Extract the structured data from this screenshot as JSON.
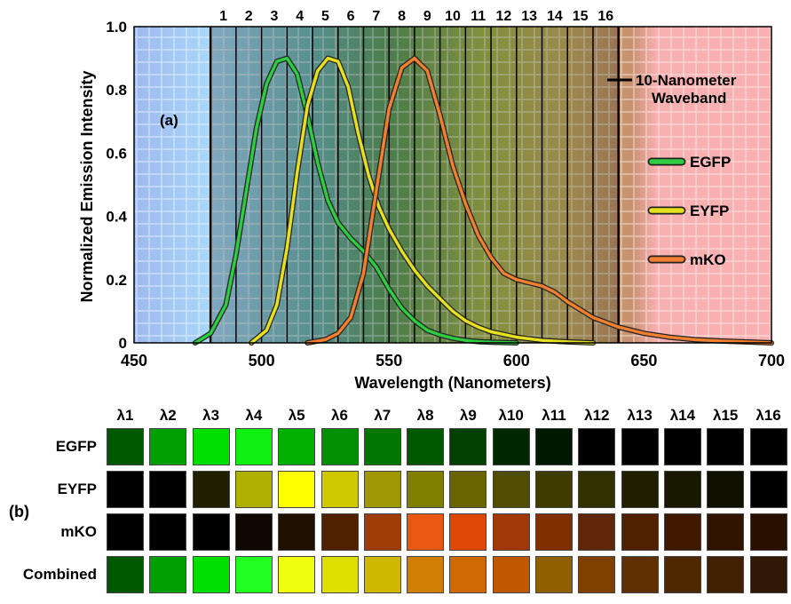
{
  "chart_data": [
    {
      "type": "line",
      "panel_label": "(a)",
      "xlabel": "Wavelength (Nanometers)",
      "ylabel": "Normalized Emission Intensity",
      "xlim": [
        450,
        700
      ],
      "ylim": [
        0,
        1.0
      ],
      "x_ticks": [
        "450",
        "500",
        "550",
        "600",
        "650",
        "700"
      ],
      "y_ticks": [
        "0",
        "0.2",
        "0.4",
        "0.6",
        "0.8",
        "1.0"
      ],
      "grid": true,
      "legend_position": "right",
      "waveband": {
        "start": 480,
        "width": 10,
        "count": 16,
        "labels": [
          "1",
          "2",
          "3",
          "4",
          "5",
          "6",
          "7",
          "8",
          "9",
          "10",
          "11",
          "12",
          "13",
          "14",
          "15",
          "16"
        ],
        "annotation_line1": "10-Nanometer",
        "annotation_line2": "Waveband"
      },
      "series": [
        {
          "name": "EGFP",
          "color": "#2ecc40",
          "x": [
            474,
            480,
            486,
            490,
            494,
            498,
            502,
            506,
            510,
            514,
            518,
            522,
            526,
            530,
            535,
            540,
            545,
            550,
            555,
            560,
            565,
            570,
            575,
            580,
            585,
            590,
            595,
            600
          ],
          "y": [
            0.0,
            0.03,
            0.12,
            0.28,
            0.48,
            0.68,
            0.82,
            0.89,
            0.9,
            0.85,
            0.72,
            0.57,
            0.45,
            0.38,
            0.33,
            0.29,
            0.24,
            0.17,
            0.11,
            0.07,
            0.04,
            0.025,
            0.015,
            0.008,
            0.004,
            0.002,
            0.001,
            0.0
          ]
        },
        {
          "name": "EYFP",
          "color": "#e6e020",
          "x": [
            496,
            502,
            506,
            510,
            514,
            518,
            522,
            526,
            530,
            534,
            538,
            542,
            546,
            550,
            555,
            560,
            565,
            570,
            575,
            580,
            585,
            590,
            600,
            610,
            620,
            630
          ],
          "y": [
            0.0,
            0.04,
            0.12,
            0.3,
            0.54,
            0.75,
            0.86,
            0.9,
            0.89,
            0.81,
            0.66,
            0.53,
            0.43,
            0.36,
            0.29,
            0.23,
            0.18,
            0.14,
            0.1,
            0.07,
            0.05,
            0.035,
            0.018,
            0.008,
            0.003,
            0.0
          ]
        },
        {
          "name": "mKO",
          "color": "#f08030",
          "x": [
            518,
            525,
            530,
            535,
            540,
            545,
            550,
            555,
            560,
            565,
            570,
            575,
            580,
            585,
            590,
            595,
            600,
            605,
            610,
            615,
            620,
            630,
            640,
            650,
            660,
            670,
            680,
            690,
            700
          ],
          "y": [
            0.0,
            0.01,
            0.03,
            0.08,
            0.22,
            0.48,
            0.74,
            0.87,
            0.9,
            0.86,
            0.72,
            0.56,
            0.44,
            0.34,
            0.27,
            0.22,
            0.2,
            0.19,
            0.18,
            0.16,
            0.13,
            0.08,
            0.05,
            0.03,
            0.018,
            0.01,
            0.006,
            0.003,
            0.0
          ]
        }
      ]
    },
    {
      "type": "heatmap",
      "panel_label": "(b)",
      "columns": [
        "λ1",
        "λ2",
        "λ3",
        "λ4",
        "λ5",
        "λ6",
        "λ7",
        "λ8",
        "λ9",
        "λ10",
        "λ11",
        "λ12",
        "λ13",
        "λ14",
        "λ15",
        "λ16"
      ],
      "rows": [
        {
          "name": "EGFP",
          "colors": [
            "#005800",
            "#00a000",
            "#00e000",
            "#10f010",
            "#00b000",
            "#009000",
            "#007800",
            "#005800",
            "#004000",
            "#002800",
            "#001800",
            "#000000",
            "#000000",
            "#000000",
            "#000000",
            "#000000"
          ]
        },
        {
          "name": "EYFP",
          "colors": [
            "#000000",
            "#000000",
            "#202000",
            "#b0b000",
            "#ffff00",
            "#d0c800",
            "#a09800",
            "#808000",
            "#686400",
            "#504c00",
            "#403c00",
            "#303000",
            "#202000",
            "#181800",
            "#101000",
            "#000000"
          ]
        },
        {
          "name": "mKO",
          "colors": [
            "#000000",
            "#000000",
            "#000000",
            "#100800",
            "#201000",
            "#502000",
            "#a03c08",
            "#e85810",
            "#e04808",
            "#a03808",
            "#803000",
            "#602808",
            "#502000",
            "#401800",
            "#301400",
            "#281000"
          ]
        },
        {
          "name": "Combined",
          "colors": [
            "#005800",
            "#00a000",
            "#00e000",
            "#20ff20",
            "#f0ff10",
            "#e0e000",
            "#d0b800",
            "#d08000",
            "#d06800",
            "#c05800",
            "#906000",
            "#804000",
            "#603000",
            "#502800",
            "#402000",
            "#301808"
          ]
        }
      ]
    }
  ]
}
